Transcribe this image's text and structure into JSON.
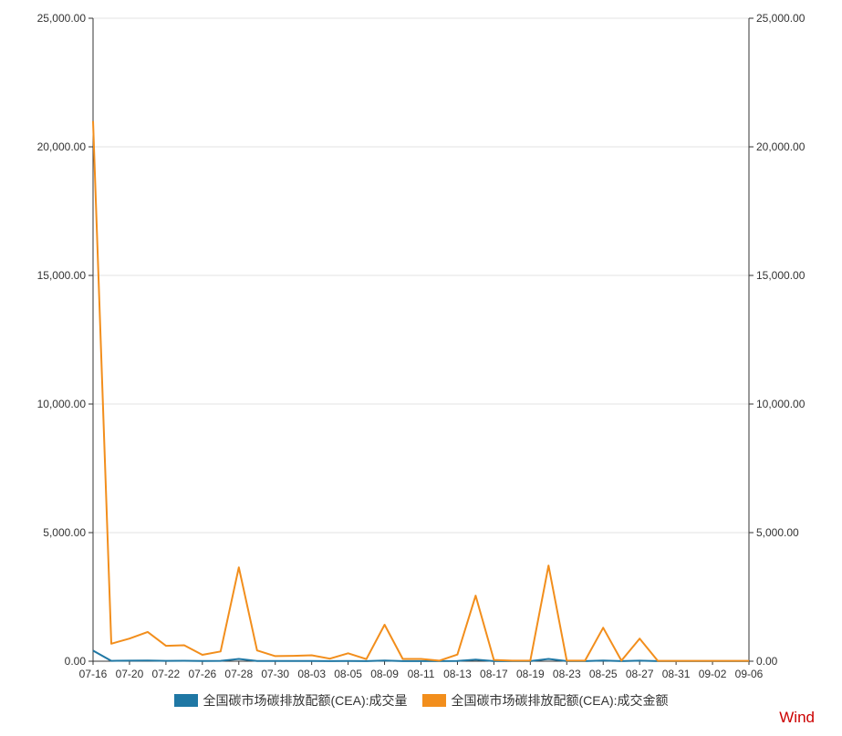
{
  "chart_data": {
    "type": "line",
    "x": [
      "07-16",
      "07-19",
      "07-20",
      "07-21",
      "07-22",
      "07-23",
      "07-26",
      "07-27",
      "07-28",
      "07-29",
      "07-30",
      "08-02",
      "08-03",
      "08-04",
      "08-05",
      "08-06",
      "08-09",
      "08-10",
      "08-11",
      "08-12",
      "08-13",
      "08-16",
      "08-17",
      "08-18",
      "08-19",
      "08-20",
      "08-23",
      "08-24",
      "08-25",
      "08-26",
      "08-27",
      "08-30",
      "08-31",
      "09-01",
      "09-02",
      "09-03",
      "09-06"
    ],
    "tick_labels": [
      "07-16",
      "07-20",
      "07-22",
      "07-26",
      "07-28",
      "07-30",
      "08-03",
      "08-05",
      "08-09",
      "08-11",
      "08-13",
      "08-17",
      "08-19",
      "08-23",
      "08-25",
      "08-27",
      "08-31",
      "09-02",
      "09-06"
    ],
    "y_ticks": [
      "0.00",
      "5,000.00",
      "10,000.00",
      "15,000.00",
      "20,000.00",
      "25,000.00"
    ],
    "ylim": [
      0,
      25000
    ],
    "y2lim": [
      0,
      25000
    ],
    "grid": true,
    "legend_position": "bottom",
    "series": [
      {
        "name": "全国碳市场碳排放配额(CEA):成交量",
        "color": "#1f77a4",
        "axis": "left",
        "values": [
          410,
          15,
          20,
          25,
          15,
          18,
          12,
          15,
          90,
          10,
          8,
          8,
          10,
          5,
          8,
          5,
          25,
          5,
          5,
          3,
          10,
          60,
          5,
          3,
          3,
          90,
          5,
          5,
          30,
          5,
          20,
          3,
          3,
          3,
          3,
          3,
          3
        ]
      },
      {
        "name": "全国碳市场碳排放配额(CEA):成交金额",
        "color": "#f28e1c",
        "axis": "right",
        "values": [
          21000,
          680,
          880,
          1140,
          600,
          620,
          250,
          380,
          3650,
          420,
          200,
          210,
          230,
          100,
          310,
          80,
          1420,
          90,
          90,
          20,
          260,
          2550,
          50,
          20,
          20,
          3720,
          20,
          20,
          1300,
          20,
          880,
          15,
          15,
          15,
          15,
          15,
          15
        ]
      }
    ]
  },
  "watermark": "Wind"
}
